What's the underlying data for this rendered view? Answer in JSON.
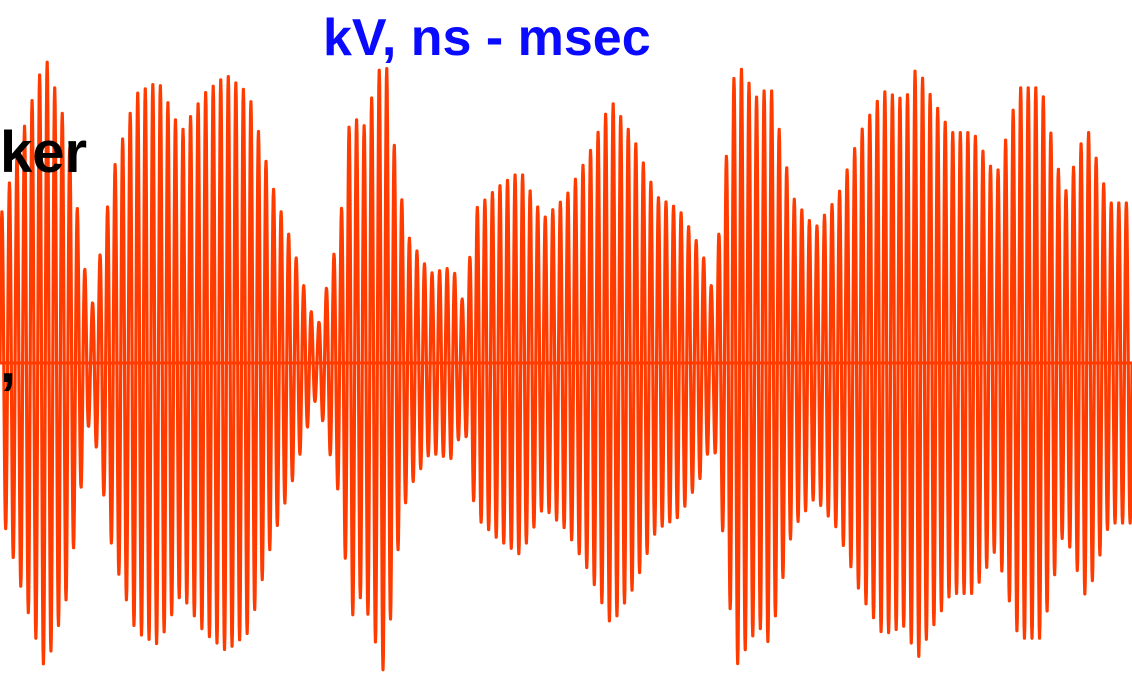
{
  "heading_fragment": {
    "line1": "ker",
    "line2": ","
  },
  "units_label": "kV, ns - msec",
  "colors": {
    "waveform": "#ff3b00",
    "units_label": "#0a0aff",
    "heading": "#000000",
    "background": "#ffffff"
  },
  "chart_data": {
    "type": "line",
    "title": "",
    "xlabel": "",
    "ylabel": "",
    "x_range": [
      0,
      1
    ],
    "ylim": [
      -1,
      1
    ],
    "grid": false,
    "legend": "none",
    "baseline_y": 0,
    "oscillation_count": 150,
    "series": [
      {
        "amplitude_envelope": [
          [
            0.0,
            0.45
          ],
          [
            0.02,
            0.72
          ],
          [
            0.04,
            0.96
          ],
          [
            0.06,
            0.72
          ],
          [
            0.08,
            0.15
          ],
          [
            0.1,
            0.6
          ],
          [
            0.12,
            0.84
          ],
          [
            0.14,
            0.88
          ],
          [
            0.16,
            0.72
          ],
          [
            0.18,
            0.84
          ],
          [
            0.2,
            0.9
          ],
          [
            0.22,
            0.84
          ],
          [
            0.24,
            0.56
          ],
          [
            0.26,
            0.35
          ],
          [
            0.27,
            0.22
          ],
          [
            0.28,
            0.1
          ],
          [
            0.3,
            0.42
          ],
          [
            0.31,
            0.8
          ],
          [
            0.32,
            0.72
          ],
          [
            0.34,
            0.98
          ],
          [
            0.35,
            0.62
          ],
          [
            0.36,
            0.4
          ],
          [
            0.38,
            0.28
          ],
          [
            0.4,
            0.3
          ],
          [
            0.41,
            0.18
          ],
          [
            0.42,
            0.48
          ],
          [
            0.44,
            0.55
          ],
          [
            0.46,
            0.6
          ],
          [
            0.48,
            0.45
          ],
          [
            0.5,
            0.52
          ],
          [
            0.52,
            0.65
          ],
          [
            0.54,
            0.82
          ],
          [
            0.56,
            0.7
          ],
          [
            0.58,
            0.52
          ],
          [
            0.6,
            0.48
          ],
          [
            0.62,
            0.35
          ],
          [
            0.63,
            0.22
          ],
          [
            0.65,
            0.95
          ],
          [
            0.67,
            0.82
          ],
          [
            0.68,
            0.88
          ],
          [
            0.7,
            0.52
          ],
          [
            0.72,
            0.42
          ],
          [
            0.74,
            0.52
          ],
          [
            0.76,
            0.72
          ],
          [
            0.78,
            0.85
          ],
          [
            0.8,
            0.82
          ],
          [
            0.81,
            0.93
          ],
          [
            0.82,
            0.85
          ],
          [
            0.84,
            0.72
          ],
          [
            0.86,
            0.72
          ],
          [
            0.88,
            0.58
          ],
          [
            0.9,
            0.86
          ],
          [
            0.92,
            0.86
          ],
          [
            0.94,
            0.52
          ],
          [
            0.96,
            0.74
          ],
          [
            0.98,
            0.5
          ],
          [
            1.0,
            0.5
          ]
        ]
      }
    ]
  }
}
